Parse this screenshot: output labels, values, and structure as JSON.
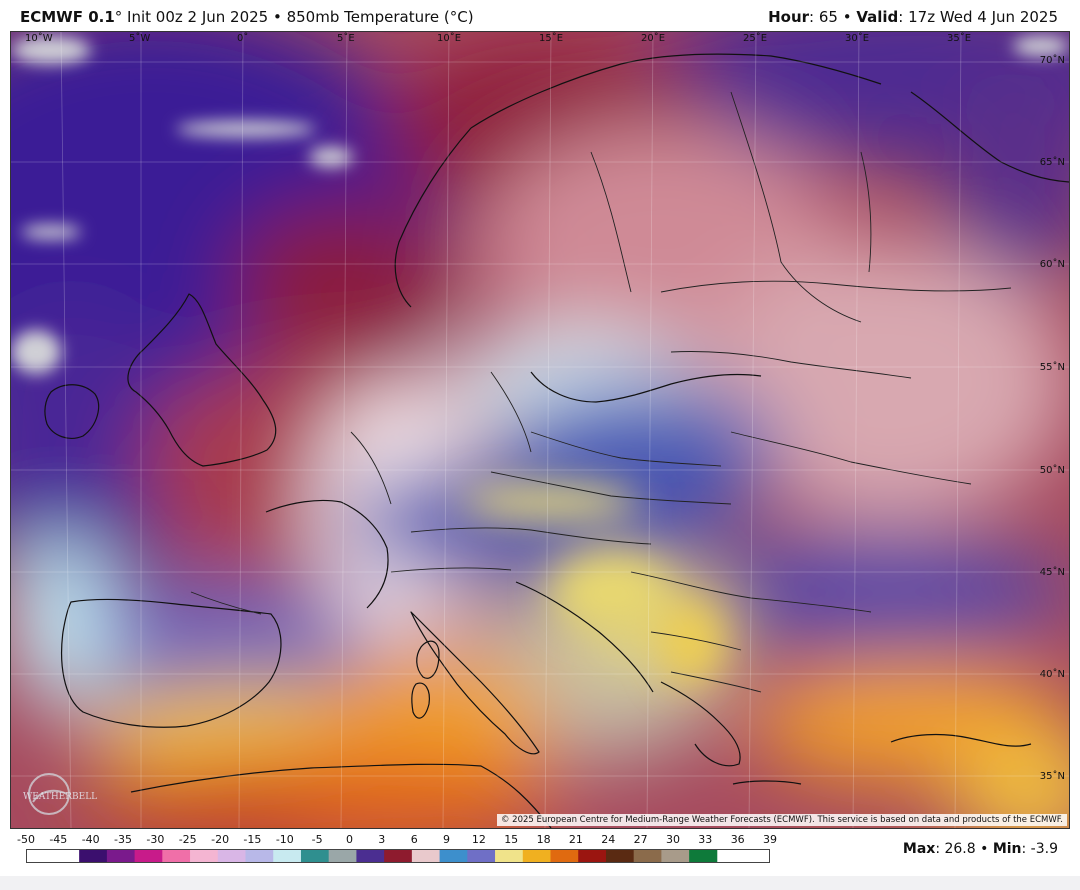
{
  "header": {
    "model": "ECMWF 0.1",
    "init": "° Init 00z 2 Jun 2025 • 850mb Temperature (°C)",
    "hour_label": "Hour",
    "hour_value": ": 65 • ",
    "valid_label": "Valid",
    "valid_value": ": 17z Wed 4 Jun 2025"
  },
  "map": {
    "lon_labels": [
      "10˚W",
      "5˚W",
      "0˚",
      "5˚E",
      "10˚E",
      "15˚E",
      "20˚E",
      "25˚E",
      "30˚E",
      "35˚E"
    ],
    "lat_labels": [
      "70˚N",
      "65˚N",
      "60˚N",
      "55˚N",
      "50˚N",
      "45˚N",
      "40˚N",
      "35˚N"
    ],
    "copyright": "© 2025 European Centre for Medium-Range Weather Forecasts (ECMWF). This service is based on data and products of the ECMWF.",
    "logo_text": "WEATHERBELL"
  },
  "colorbar": {
    "ticks": [
      "-50",
      "-45",
      "-40",
      "-35",
      "-30",
      "-25",
      "-20",
      "-15",
      "-10",
      "-5",
      "0",
      "3",
      "6",
      "9",
      "12",
      "15",
      "18",
      "21",
      "24",
      "27",
      "30",
      "33",
      "36",
      "39"
    ],
    "colors": [
      "#3b0f6e",
      "#7a1a8c",
      "#c81b8a",
      "#f06fa8",
      "#f4b5d2",
      "#d9b6e6",
      "#b8b8e8",
      "#c8eaf0",
      "#2f8f8f",
      "#9aa7a8",
      "#4b2e91",
      "#8e1b2e",
      "#e9c9cc",
      "#3d8fcc",
      "#6f6fc6",
      "#f0e38a",
      "#f0b020",
      "#e06a10",
      "#9b1510",
      "#5a2a12",
      "#8b6b4b",
      "#a89b8a",
      "#0e7a3a"
    ]
  },
  "stats": {
    "max_label": "Max",
    "max_value": ": 26.8 • ",
    "min_label": "Min",
    "min_value": ": -3.9"
  }
}
